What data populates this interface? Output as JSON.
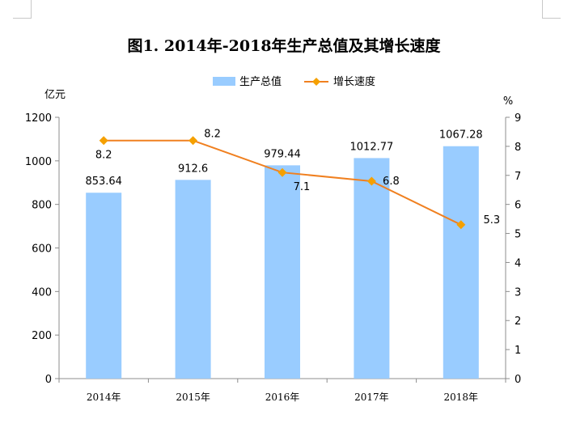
{
  "chart_data": {
    "type": "bar",
    "title": "图1. 2014年-2018年生产总值及其增长速度",
    "categories": [
      "2014年",
      "2015年",
      "2016年",
      "2017年",
      "2018年"
    ],
    "series": [
      {
        "name": "生产总值",
        "type": "bar",
        "axis": "left",
        "values": [
          853.64,
          912.6,
          979.44,
          1012.77,
          1067.28
        ],
        "labels": [
          "853.64",
          "912.6",
          "979.44",
          "1012.77",
          "1067.28"
        ],
        "color": "#99ccff"
      },
      {
        "name": "增长速度",
        "type": "line",
        "axis": "right",
        "values": [
          8.2,
          8.2,
          7.1,
          6.8,
          5.3
        ],
        "labels": [
          "8.2",
          "8.2",
          "7.1",
          "6.8",
          "5.3"
        ],
        "color": "#f08020",
        "marker_color": "#f5a000"
      }
    ],
    "y_left": {
      "label": "亿元",
      "ylim": [
        0,
        1200
      ],
      "ticks": [
        0,
        200,
        400,
        600,
        800,
        1000,
        1200
      ]
    },
    "y_right": {
      "label": "%",
      "ylim": [
        0,
        9
      ],
      "ticks": [
        0,
        1,
        2,
        3,
        4,
        5,
        6,
        7,
        8,
        9
      ]
    },
    "grid": false,
    "legend": "top-center"
  }
}
